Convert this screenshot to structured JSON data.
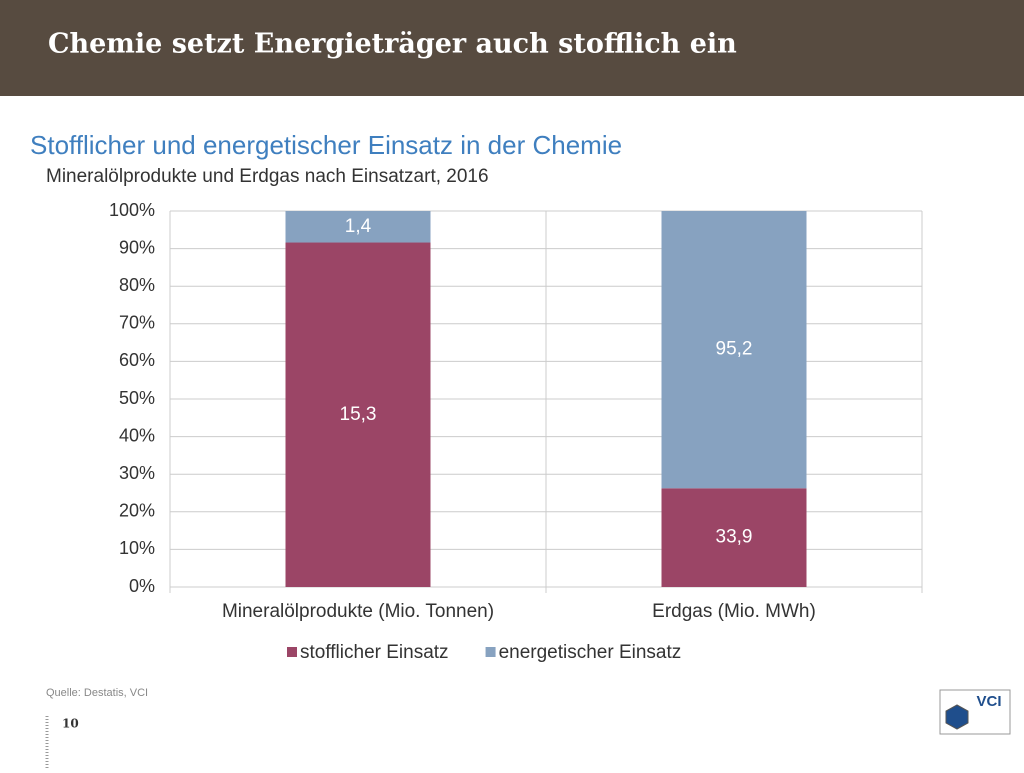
{
  "header": {
    "title": "Chemie setzt Energieträger auch stofflich ein"
  },
  "chart_data": {
    "type": "stacked_bar_percent",
    "title": "Stofflicher und energetischer Einsatz in der Chemie",
    "subtitle": "Mineralölprodukte und Erdgas nach Einsatzart, 2016",
    "categories": [
      "Mineralölprodukte (Mio. Tonnen)",
      "Erdgas (Mio. MWh)"
    ],
    "series": [
      {
        "name": "stofflicher Einsatz",
        "color": "#9b4566",
        "values": [
          15.3,
          33.9
        ],
        "value_labels": [
          "15,3",
          "33,9"
        ]
      },
      {
        "name": "energetischer Einsatz",
        "color": "#87a2c0",
        "values": [
          1.4,
          95.2
        ],
        "value_labels": [
          "1,4",
          "95,2"
        ]
      }
    ],
    "ylim": [
      0,
      100
    ],
    "yticks": [
      {
        "value": 0,
        "label": "0%"
      },
      {
        "value": 10,
        "label": "10%"
      },
      {
        "value": 20,
        "label": "20%"
      },
      {
        "value": 30,
        "label": "30%"
      },
      {
        "value": 40,
        "label": "40%"
      },
      {
        "value": 50,
        "label": "50%"
      },
      {
        "value": 60,
        "label": "60%"
      },
      {
        "value": 70,
        "label": "70%"
      },
      {
        "value": 80,
        "label": "80%"
      },
      {
        "value": 90,
        "label": "90%"
      },
      {
        "value": 100,
        "label": "100%"
      }
    ],
    "grid": true,
    "legend": "bottom"
  },
  "footer": {
    "source": "Quelle: Destatis, VCI",
    "page": "10",
    "logo": "VCI"
  }
}
